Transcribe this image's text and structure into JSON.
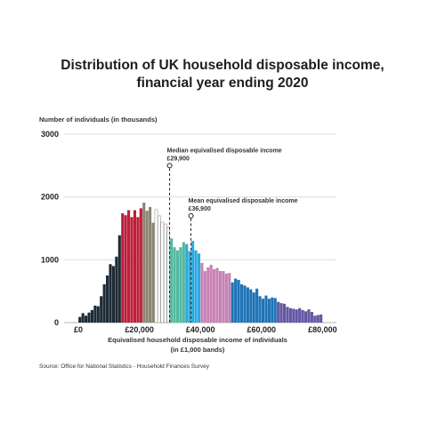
{
  "chart_data": {
    "type": "bar",
    "title": "Distribution of UK household disposable income, financial year ending 2020",
    "title_lines": [
      "Distribution of UK household disposable income,",
      "financial year ending 2020"
    ],
    "ylabel": "Number of individuals (in thousands)",
    "xlabel": "Equivalised household disposable income of individuals",
    "xlabel_line2": "(in £1,000 bands)",
    "source": "Source: Office for National Statistics - Household Finances Survey",
    "ylim": [
      0,
      3000
    ],
    "xlim": [
      0,
      80
    ],
    "y_ticks": [
      0,
      1000,
      2000,
      3000
    ],
    "y_tick_labels": [
      "0",
      "1000",
      "2000",
      "3000"
    ],
    "x_ticks": [
      0,
      20,
      40,
      60,
      80
    ],
    "x_tick_labels": [
      "£0",
      "£20,000",
      "£40,000",
      "£60,000",
      "£80,000"
    ],
    "grid": true,
    "bar_width": 1,
    "x": [
      1,
      2,
      3,
      4,
      5,
      6,
      7,
      8,
      9,
      10,
      11,
      12,
      13,
      14,
      15,
      16,
      17,
      18,
      19,
      20,
      21,
      22,
      23,
      24,
      25,
      26,
      27,
      28,
      29,
      30,
      31,
      32,
      33,
      34,
      35,
      36,
      37,
      38,
      39,
      40,
      41,
      42,
      43,
      44,
      45,
      46,
      47,
      48,
      49,
      50,
      51,
      52,
      53,
      54,
      55,
      56,
      57,
      58,
      59,
      60,
      61,
      62,
      63,
      64,
      65,
      66,
      67,
      68,
      69,
      70,
      71,
      72,
      73,
      74,
      75,
      76,
      77,
      78,
      79,
      80
    ],
    "values": [
      90,
      150,
      110,
      160,
      200,
      270,
      260,
      420,
      610,
      750,
      930,
      900,
      1050,
      1390,
      1740,
      1710,
      1790,
      1680,
      1790,
      1680,
      1820,
      1910,
      1780,
      1840,
      1590,
      1800,
      1700,
      1600,
      1570,
      1520,
      1340,
      1200,
      1150,
      1200,
      1280,
      1250,
      1140,
      1300,
      1150,
      1100,
      950,
      820,
      880,
      920,
      850,
      870,
      820,
      820,
      780,
      790,
      640,
      700,
      680,
      610,
      590,
      560,
      530,
      480,
      540,
      420,
      380,
      430,
      380,
      400,
      390,
      330,
      310,
      300,
      250,
      230,
      220,
      210,
      230,
      200,
      180,
      210,
      170,
      110,
      120,
      130
    ],
    "bar_colors": [
      "#1d2a36",
      "#1d2a36",
      "#1d2a36",
      "#1d2a36",
      "#1d2a36",
      "#1d2a36",
      "#1d2a36",
      "#1d2a36",
      "#1d2a36",
      "#1d2a36",
      "#1d2a36",
      "#1d2a36",
      "#1d2a36",
      "#1d2a36",
      "#bd1f3a",
      "#bd1f3a",
      "#bd1f3a",
      "#bd1f3a",
      "#bd1f3a",
      "#bd1f3a",
      "#bd1f3a",
      "#8c8572",
      "#8c8572",
      "#8c8572",
      "#8c8572",
      "#ffffff",
      "#ffffff",
      "#ffffff",
      "#ffffff",
      "#ffffff",
      "#56b8a1",
      "#56b8a1",
      "#56b8a1",
      "#56b8a1",
      "#56b8a1",
      "#2aa9df",
      "#2aa9df",
      "#2aa9df",
      "#2aa9df",
      "#2aa9df",
      "#c682b3",
      "#c682b3",
      "#c682b3",
      "#c682b3",
      "#c682b3",
      "#c682b3",
      "#c682b3",
      "#c682b3",
      "#c682b3",
      "#c682b3",
      "#1f73b5",
      "#1f73b5",
      "#1f73b5",
      "#1f73b5",
      "#1f73b5",
      "#1f73b5",
      "#1f73b5",
      "#1f73b5",
      "#1f73b5",
      "#1f73b5",
      "#1f73b5",
      "#1f73b5",
      "#1f73b5",
      "#1f73b5",
      "#1f73b5",
      "#6357a3",
      "#6357a3",
      "#6357a3",
      "#6357a3",
      "#6357a3",
      "#6357a3",
      "#6357a3",
      "#6357a3",
      "#6357a3",
      "#6357a3",
      "#6357a3",
      "#6357a3",
      "#6357a3",
      "#6357a3",
      "#6357a3"
    ],
    "annotations": [
      {
        "label": "Median equivalised disposable income",
        "value_label": "£29,900",
        "x": 29.9,
        "y": 2500
      },
      {
        "label": "Mean equivalised disposable income",
        "value_label": "£36,900",
        "x": 36.9,
        "y": 1700
      }
    ]
  }
}
